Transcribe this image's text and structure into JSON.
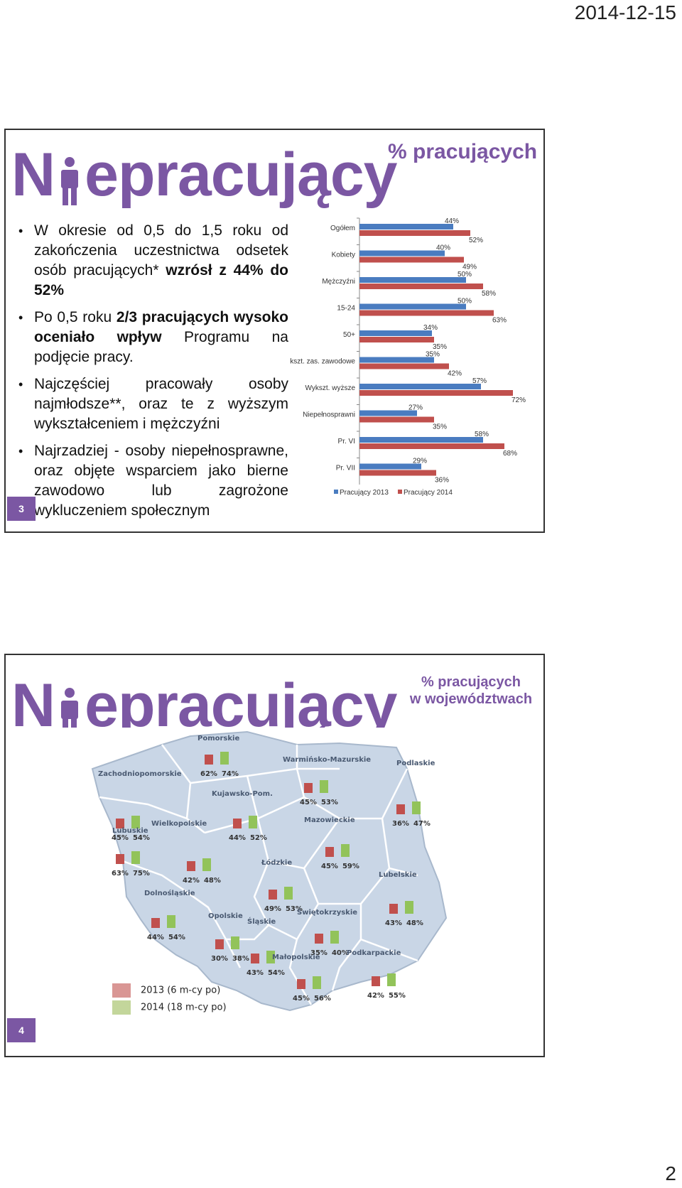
{
  "header": {
    "date": "2014-12-15"
  },
  "footer": {
    "page_number": "2"
  },
  "slide3": {
    "title": "Niepracujący",
    "subtitle": "% pracujących",
    "slide_number": "3",
    "bullets": [
      {
        "parts": [
          {
            "t": "W okresie od 0,5 do 1,5 roku od zakończenia uczestnictwa odsetek osób pracujących* "
          },
          {
            "t": "wzrósł z 44% do 52%",
            "b": true
          }
        ]
      },
      {
        "parts": [
          {
            "t": "Po 0,5 roku "
          },
          {
            "t": "2/3 pracujących wysoko oceniało wpływ",
            "b": true
          },
          {
            "t": " Programu na podjęcie pracy."
          }
        ]
      },
      {
        "parts": [
          {
            "t": "Najczęściej pracowały osoby najmłodsze**, oraz te z wyższym wykształceniem i mężczyźni"
          }
        ]
      },
      {
        "parts": [
          {
            "t": "Najrzadziej - osoby niepełnosprawne, oraz objęte wsparciem jako bierne zawodowo lub zagrożone wykluczeniem społecznym"
          }
        ]
      }
    ]
  },
  "chart_data": {
    "type": "bar",
    "orientation": "horizontal",
    "categories": [
      "Ogółem",
      "Kobiety",
      "Mężczyźni",
      "15-24",
      "50+",
      "Wykszt. zas. zawodowe",
      "Wykszt. wyższe",
      "Niepełnosprawni",
      "Pr. VI",
      "Pr. VII"
    ],
    "series": [
      {
        "name": "Pracujący 2013",
        "color": "#4a7cc0",
        "values": [
          44,
          40,
          50,
          50,
          34,
          35,
          57,
          27,
          58,
          29
        ],
        "labels": [
          "44%",
          "40%",
          "50%",
          "50%",
          "34%",
          "35%",
          "57%",
          "27%",
          "58%",
          "29%"
        ]
      },
      {
        "name": "Pracujący 2014",
        "color": "#c0504d",
        "values": [
          52,
          49,
          58,
          63,
          35,
          42,
          72,
          35,
          68,
          36
        ],
        "labels": [
          "52%",
          "49%",
          "58%",
          "63%",
          "35%",
          "42%",
          "72%",
          "35%",
          "68%",
          "36%"
        ]
      }
    ],
    "xlim": [
      0,
      100
    ],
    "legend": "bottom"
  },
  "slide4": {
    "title": "Niepracujący",
    "subtitle_line1": "% pracujących",
    "subtitle_line2": "w województwach",
    "slide_number": "4",
    "legend": [
      {
        "label": "2013 (6 m-cy po)",
        "color": "#d99694"
      },
      {
        "label": "2014 (18 m-cy po)",
        "color": "#c3d69b"
      }
    ],
    "regions": [
      {
        "name": "Pomorskie",
        "v2013": "62%",
        "v2014": "74%"
      },
      {
        "name": "Warmińsko-Mazurskie",
        "v2013": "45%",
        "v2014": "53%"
      },
      {
        "name": "Zachodniopomorskie",
        "v2013": "45%",
        "v2014": "54%"
      },
      {
        "name": "Kujawsko-Pom.",
        "v2013": "44%",
        "v2014": "52%"
      },
      {
        "name": "Podlaskie",
        "v2013": "36%",
        "v2014": "47%"
      },
      {
        "name": "Lubuskie",
        "v2013": "63%",
        "v2014": "75%"
      },
      {
        "name": "Wielkopolskie",
        "v2013": "42%",
        "v2014": "48%"
      },
      {
        "name": "Mazowieckie",
        "v2013": "45%",
        "v2014": "59%"
      },
      {
        "name": "Łódzkie",
        "v2013": "49%",
        "v2014": "53%"
      },
      {
        "name": "Dolnośląskie",
        "v2013": "44%",
        "v2014": "54%"
      },
      {
        "name": "Lubelskie",
        "v2013": "43%",
        "v2014": "48%"
      },
      {
        "name": "Opolskie",
        "v2013": "30%",
        "v2014": "38%"
      },
      {
        "name": "Świętokrzyskie",
        "v2013": "35%",
        "v2014": "40%"
      },
      {
        "name": "Śląskie",
        "v2013": "43%",
        "v2014": "54%"
      },
      {
        "name": "Małopolskie",
        "v2013": "45%",
        "v2014": "56%"
      },
      {
        "name": "Podkarpackie",
        "v2013": "42%",
        "v2014": "55%"
      }
    ]
  }
}
